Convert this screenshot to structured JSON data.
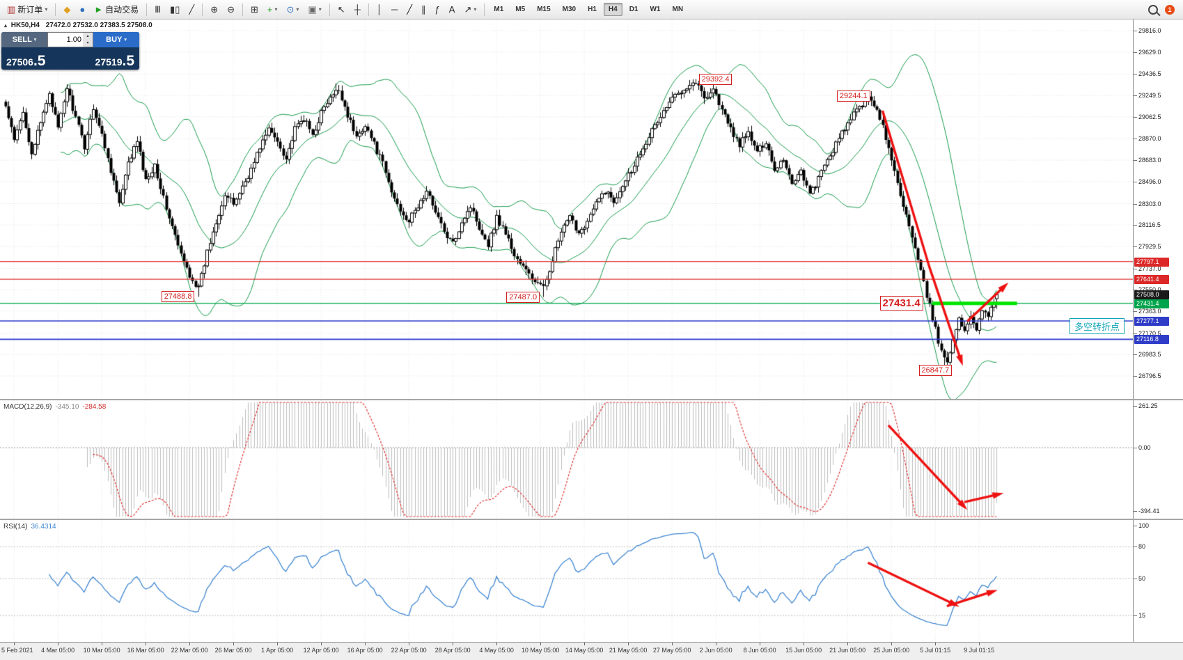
{
  "toolbar": {
    "groups": [
      {
        "items": [
          {
            "name": "new-order-button",
            "glyph": "▥",
            "color": "#b03838",
            "label": "新订单",
            "caret": true
          }
        ]
      },
      {
        "items": [
          {
            "name": "metaeditor-icon",
            "glyph": "◆",
            "color": "#e0a020"
          },
          {
            "name": "market-watch-icon",
            "glyph": "●",
            "color": "#3070c0"
          },
          {
            "name": "autotrading-button",
            "glyph": "►",
            "color": "#22a022",
            "label": "自动交易"
          }
        ]
      },
      {
        "items": [
          {
            "name": "bar-chart-icon",
            "glyph": "Ⅲ",
            "color": "#333333"
          },
          {
            "name": "candlestick-chart-icon",
            "glyph": "▮▯",
            "color": "#333333"
          },
          {
            "name": "line-chart-icon",
            "glyph": "╱",
            "color": "#333333"
          }
        ]
      },
      {
        "items": [
          {
            "name": "zoom-in-icon",
            "glyph": "⊕",
            "color": "#333333"
          },
          {
            "name": "zoom-out-icon",
            "glyph": "⊖",
            "color": "#333333"
          }
        ]
      },
      {
        "items": [
          {
            "name": "tile-windows-icon",
            "glyph": "⊞",
            "color": "#333333"
          },
          {
            "name": "indicators-icon",
            "glyph": "+",
            "color": "#1e9e1e",
            "caret": true
          },
          {
            "name": "periods-icon",
            "glyph": "⊙",
            "color": "#3070c0",
            "caret": true
          },
          {
            "name": "template-icon",
            "glyph": "▣",
            "color": "#666666",
            "caret": true
          }
        ]
      },
      {
        "items": [
          {
            "name": "cursor-icon",
            "glyph": "↖",
            "color": "#222222"
          },
          {
            "name": "crosshair-icon",
            "glyph": "┼",
            "color": "#222222"
          }
        ]
      },
      {
        "items": [
          {
            "name": "vertical-line-icon",
            "glyph": "│",
            "color": "#222222"
          },
          {
            "name": "horizontal-line-icon",
            "glyph": "─",
            "color": "#222222"
          },
          {
            "name": "trendline-icon",
            "glyph": "╱",
            "color": "#222222"
          },
          {
            "name": "channel-icon",
            "glyph": "∥",
            "color": "#222222"
          },
          {
            "name": "fibonacci-icon",
            "glyph": "ƒ",
            "color": "#222222"
          },
          {
            "name": "text-label-icon",
            "glyph": "A",
            "color": "#222222"
          },
          {
            "name": "arrows-object-icon",
            "glyph": "↗",
            "color": "#222222",
            "caret": true
          }
        ]
      }
    ],
    "timeframes": [
      {
        "label": "M1"
      },
      {
        "label": "M5"
      },
      {
        "label": "M15"
      },
      {
        "label": "M30"
      },
      {
        "label": "H1"
      },
      {
        "label": "H4",
        "active": true
      },
      {
        "label": "D1"
      },
      {
        "label": "W1"
      },
      {
        "label": "MN"
      }
    ],
    "notification_badge": "1"
  },
  "symbol_info": {
    "collapse_icon": "▴",
    "symbol": "HK50,H4",
    "ohlc": "27472.0 27532.0 27383.5 27508.0"
  },
  "trade_panel": {
    "sell_label": "SELL",
    "buy_label": "BUY",
    "volume": "1.00",
    "sell_price": {
      "main": "27506",
      "pips": ".5"
    },
    "buy_price": {
      "main": "27519",
      "pips": ".5"
    }
  },
  "chart_data": {
    "type": "candlestick",
    "symbol": "HK50",
    "timeframe": "H4",
    "ohlc": {
      "open": 27472.0,
      "high": 27532.0,
      "low": 27383.5,
      "close": 27508.0
    },
    "price_range": {
      "top": 29816.0,
      "bottom": 26796.5
    },
    "price_axis_ticks": [
      29816.0,
      29629.0,
      29436.5,
      29249.5,
      29062.5,
      28870.0,
      28683.0,
      28496.0,
      28303.0,
      28116.5,
      27929.5,
      27737.0,
      27550.0,
      27363.0,
      27170.5,
      26983.5,
      26796.5
    ],
    "time_labels": [
      "5 Feb 2021",
      "4 Mar 05:00",
      "10 Mar 05:00",
      "16 Mar 05:00",
      "22 Mar 05:00",
      "26 Mar 05:00",
      "1 Apr 05:00",
      "12 Apr 05:00",
      "16 Apr 05:00",
      "22 Apr 05:00",
      "28 Apr 05:00",
      "4 May 05:00",
      "10 May 05:00",
      "14 May 05:00",
      "21 May 05:00",
      "27 May 05:00",
      "2 Jun 05:00",
      "8 Jun 05:00",
      "15 Jun 05:00",
      "21 Jun 05:00",
      "25 Jun 05:00",
      "5 Jul 01:15",
      "9 Jul 01:15"
    ],
    "num_candles": 340,
    "candles_per_tick": 15,
    "close_anchors": [
      [
        0,
        29150
      ],
      [
        3,
        28850
      ],
      [
        6,
        29100
      ],
      [
        9,
        28750
      ],
      [
        12,
        29000
      ],
      [
        15,
        29280
      ],
      [
        18,
        28950
      ],
      [
        21,
        29320
      ],
      [
        24,
        29050
      ],
      [
        27,
        28800
      ],
      [
        30,
        29150
      ],
      [
        33,
        28900
      ],
      [
        36,
        28600
      ],
      [
        39,
        28300
      ],
      [
        42,
        28650
      ],
      [
        45,
        28850
      ],
      [
        48,
        28500
      ],
      [
        51,
        28650
      ],
      [
        54,
        28350
      ],
      [
        57,
        28100
      ],
      [
        60,
        27850
      ],
      [
        63,
        27680
      ],
      [
        66,
        27560
      ],
      [
        69,
        27880
      ],
      [
        72,
        28150
      ],
      [
        75,
        28380
      ],
      [
        78,
        28300
      ],
      [
        81,
        28450
      ],
      [
        84,
        28600
      ],
      [
        87,
        28800
      ],
      [
        90,
        28950
      ],
      [
        93,
        28850
      ],
      [
        96,
        28700
      ],
      [
        99,
        28950
      ],
      [
        102,
        29050
      ],
      [
        105,
        28900
      ],
      [
        108,
        29100
      ],
      [
        111,
        29220
      ],
      [
        114,
        29300
      ],
      [
        117,
        29080
      ],
      [
        120,
        28880
      ],
      [
        123,
        29000
      ],
      [
        126,
        28820
      ],
      [
        129,
        28650
      ],
      [
        132,
        28400
      ],
      [
        135,
        28250
      ],
      [
        138,
        28150
      ],
      [
        141,
        28280
      ],
      [
        144,
        28400
      ],
      [
        147,
        28250
      ],
      [
        150,
        28050
      ],
      [
        153,
        27950
      ],
      [
        156,
        28150
      ],
      [
        159,
        28280
      ],
      [
        162,
        28100
      ],
      [
        165,
        27950
      ],
      [
        168,
        28180
      ],
      [
        171,
        28050
      ],
      [
        174,
        27850
      ],
      [
        177,
        27750
      ],
      [
        180,
        27650
      ],
      [
        184,
        27560
      ],
      [
        187,
        27820
      ],
      [
        190,
        28050
      ],
      [
        193,
        28180
      ],
      [
        196,
        28050
      ],
      [
        199,
        28150
      ],
      [
        202,
        28300
      ],
      [
        205,
        28420
      ],
      [
        208,
        28320
      ],
      [
        211,
        28480
      ],
      [
        214,
        28600
      ],
      [
        217,
        28750
      ],
      [
        220,
        28900
      ],
      [
        223,
        29020
      ],
      [
        226,
        29150
      ],
      [
        229,
        29250
      ],
      [
        232,
        29320
      ],
      [
        236,
        29370
      ],
      [
        239,
        29230
      ],
      [
        242,
        29310
      ],
      [
        245,
        29120
      ],
      [
        248,
        28950
      ],
      [
        251,
        28820
      ],
      [
        254,
        28920
      ],
      [
        257,
        28750
      ],
      [
        260,
        28850
      ],
      [
        263,
        28600
      ],
      [
        266,
        28700
      ],
      [
        269,
        28480
      ],
      [
        272,
        28600
      ],
      [
        275,
        28380
      ],
      [
        278,
        28520
      ],
      [
        281,
        28680
      ],
      [
        284,
        28820
      ],
      [
        287,
        28960
      ],
      [
        290,
        29080
      ],
      [
        293,
        29180
      ],
      [
        296,
        29230
      ],
      [
        299,
        29060
      ],
      [
        302,
        28780
      ],
      [
        305,
        28480
      ],
      [
        308,
        28200
      ],
      [
        311,
        27900
      ],
      [
        314,
        27600
      ],
      [
        317,
        27300
      ],
      [
        320,
        27000
      ],
      [
        322,
        26930
      ],
      [
        324,
        27120
      ],
      [
        326,
        27280
      ],
      [
        328,
        27200
      ],
      [
        330,
        27320
      ],
      [
        332,
        27220
      ],
      [
        334,
        27380
      ],
      [
        336,
        27300
      ],
      [
        338,
        27450
      ],
      [
        339,
        27508
      ]
    ],
    "candle_overrides": {
      "66": {
        "low": 27488.8
      },
      "113": {
        "high": 29355
      },
      "184": {
        "low": 27487.0
      },
      "236": {
        "high": 29392.4
      },
      "297": {
        "high": 29244.1
      },
      "321": {
        "low": 26847.7
      },
      "339": {
        "open": 27472.0,
        "high": 27532.0,
        "low": 27383.5,
        "close": 27508.0
      }
    },
    "bollinger": {
      "period": 20,
      "deviation": 2,
      "color": "#159a4a"
    },
    "levels": [
      {
        "price": 27797.1,
        "color": "#e03030",
        "width": 1.3,
        "tag_bg": "#dc2828"
      },
      {
        "price": 27641.4,
        "color": "#e03030",
        "width": 1.3,
        "tag_bg": "#dc2828"
      },
      {
        "price": 27431.4,
        "color": "#00a84e",
        "width": 1.3,
        "tag_bg": "#00a44c"
      },
      {
        "price": 27277.1,
        "color": "#2838cc",
        "width": 1.6,
        "tag_bg": "#2e3cc8"
      },
      {
        "price": 27116.8,
        "color": "#2838cc",
        "width": 1.6,
        "tag_bg": "#2e3cc8"
      }
    ],
    "current_price_tag": {
      "text": "27508.0",
      "price": 27508.0,
      "bg": "#1a1a1a"
    },
    "highlight_segment": {
      "price": 27431.4,
      "from_idx": 317,
      "to_idx": 346,
      "color": "#00e400"
    },
    "callouts": [
      {
        "text": "29392.4",
        "idx": 236,
        "price": 29392.4,
        "side": "right"
      },
      {
        "text": "29244.1",
        "idx": 297,
        "price": 29244.1,
        "side": "left"
      },
      {
        "text": "27488.8",
        "idx": 66,
        "price": 27488.8,
        "side": "left"
      },
      {
        "text": "27487.0",
        "idx": 184,
        "price": 27487.0,
        "side": "left"
      },
      {
        "text": "27431.4",
        "idx": 315,
        "price": 27431.4,
        "side": "left",
        "size": "large"
      },
      {
        "text": "26847.7",
        "idx": 325,
        "price": 26847.7,
        "side": "left"
      }
    ],
    "note": {
      "text": "多空转折点",
      "price": 27235,
      "color": "#12a4b6"
    },
    "annotations": {
      "arrow_color": "#ee1111",
      "price_arrows": [
        {
          "points": [
            [
              300,
              29116
            ],
            [
              316,
              27750
            ],
            [
              327,
              26919
            ]
          ]
        },
        {
          "points": [
            [
              329,
              27275
            ],
            [
              342,
              27588
            ]
          ]
        }
      ],
      "macd_arrows": [
        {
          "points": [
            [
              302,
              140
            ],
            [
              328,
              -370
            ]
          ]
        },
        {
          "points": [
            [
              328,
              -340
            ],
            [
              340,
              -290
            ]
          ]
        }
      ],
      "rsi_arrows": [
        {
          "points": [
            [
              295,
              65
            ],
            [
              325,
              25
            ]
          ]
        },
        {
          "points": [
            [
              322,
              24
            ],
            [
              338,
              38
            ]
          ]
        }
      ]
    },
    "macd": {
      "label": "MACD(12,26,9)",
      "value_main": "-345.10",
      "value_signal": "-284.58",
      "axis_ticks": [
        261.25,
        0.0,
        -394.41
      ],
      "hist_color": "#bdbdbd",
      "signal_color": "#e03030"
    },
    "rsi": {
      "label": "RSI(14)",
      "value": "36.4314",
      "axis_ticks": [
        100,
        80,
        50,
        15
      ],
      "levels": [
        80,
        50,
        15
      ],
      "line_color": "#3f86d2"
    }
  }
}
